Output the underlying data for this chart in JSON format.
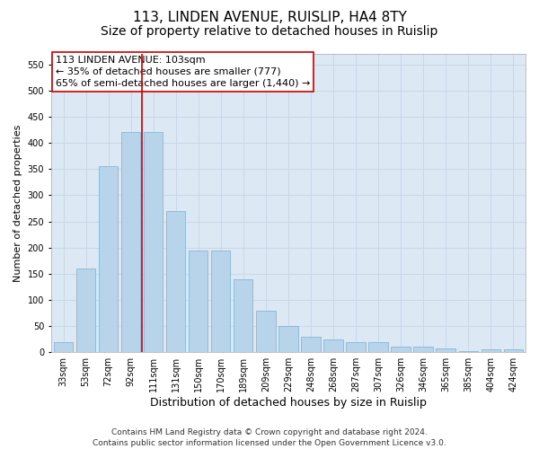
{
  "title": "113, LINDEN AVENUE, RUISLIP, HA4 8TY",
  "subtitle": "Size of property relative to detached houses in Ruislip",
  "xlabel": "Distribution of detached houses by size in Ruislip",
  "ylabel": "Number of detached properties",
  "categories": [
    "33sqm",
    "53sqm",
    "72sqm",
    "92sqm",
    "111sqm",
    "131sqm",
    "150sqm",
    "170sqm",
    "189sqm",
    "209sqm",
    "229sqm",
    "248sqm",
    "268sqm",
    "287sqm",
    "307sqm",
    "326sqm",
    "346sqm",
    "365sqm",
    "385sqm",
    "404sqm",
    "424sqm"
  ],
  "values": [
    20,
    160,
    355,
    420,
    420,
    270,
    195,
    195,
    140,
    80,
    50,
    30,
    25,
    20,
    20,
    10,
    10,
    8,
    2,
    5,
    5
  ],
  "bar_color": "#b8d4ea",
  "bar_edge_color": "#7aafd4",
  "grid_color": "#c8d8e8",
  "bg_color": "#dce8f4",
  "annotation_box_text": "113 LINDEN AVENUE: 103sqm\n← 35% of detached houses are smaller (777)\n65% of semi-detached houses are larger (1,440) →",
  "annotation_box_color": "#ffffff",
  "annotation_box_edge": "#cc0000",
  "vline_color": "#cc0000",
  "vline_pos": 3.5,
  "ylim": [
    0,
    570
  ],
  "yticks": [
    0,
    50,
    100,
    150,
    200,
    250,
    300,
    350,
    400,
    450,
    500,
    550
  ],
  "footer": "Contains HM Land Registry data © Crown copyright and database right 2024.\nContains public sector information licensed under the Open Government Licence v3.0.",
  "title_fontsize": 11,
  "subtitle_fontsize": 10,
  "xlabel_fontsize": 9,
  "ylabel_fontsize": 8,
  "tick_fontsize": 7,
  "annotation_fontsize": 8,
  "footer_fontsize": 6.5
}
